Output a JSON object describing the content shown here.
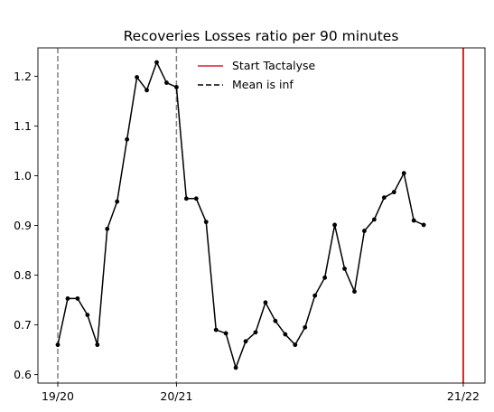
{
  "chart_data": {
    "type": "line",
    "title": "Recoveries Losses ratio per 90 minutes",
    "xlabel": "",
    "ylabel": "",
    "x_tick_labels": [
      "19/20",
      "20/21",
      "21/22"
    ],
    "y_ticks": [
      0.6,
      0.7,
      0.8,
      0.9,
      1.0,
      1.1,
      1.2
    ],
    "y_tick_labels": [
      "0.6",
      "0.7",
      "0.8",
      "0.9",
      "1.0",
      "1.1",
      "1.2"
    ],
    "ylim": [
      0.583,
      1.257
    ],
    "grid": false,
    "legend_placement": "top-center",
    "series": [
      {
        "color": "#000000",
        "marker": "dot",
        "values": [
          0.66,
          0.753,
          0.753,
          0.72,
          0.66,
          0.893,
          0.948,
          1.073,
          1.198,
          1.172,
          1.228,
          1.187,
          1.178,
          0.954,
          0.954,
          0.907,
          0.69,
          0.683,
          0.614,
          0.667,
          0.685,
          0.745,
          0.708,
          0.681,
          0.66,
          0.695,
          0.759,
          0.795,
          0.901,
          0.813,
          0.767,
          0.889,
          0.912,
          0.956,
          0.967,
          1.005,
          0.91,
          0.901
        ]
      }
    ],
    "vlines": [
      {
        "x_index": 0,
        "style": "dashed",
        "color": "#808080"
      },
      {
        "x_index": 12,
        "style": "dashed",
        "color": "#808080"
      },
      {
        "x_index": 41,
        "style": "dashed",
        "color": "#808080"
      },
      {
        "x_index": 41,
        "style": "solid",
        "color": "#d62728"
      }
    ],
    "legend": [
      {
        "label": "Start Tactalyse",
        "color": "#d62728",
        "style": "solid"
      },
      {
        "label": "Mean is inf",
        "color": "#000000",
        "style": "dashed"
      }
    ]
  }
}
